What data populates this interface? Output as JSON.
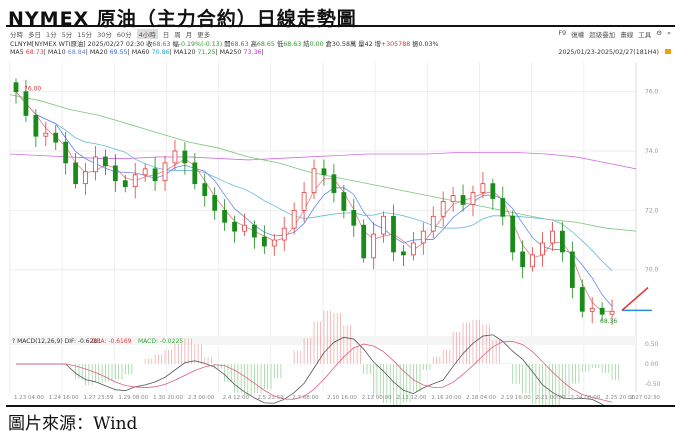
{
  "title": "NYMEX 原油（主力合約）日線走勢圖",
  "toolbar": {
    "periods": [
      "分時",
      "多日",
      "1分",
      "5分",
      "15分",
      "30分",
      "60分",
      "4小時",
      "日",
      "周",
      "月",
      "更多"
    ],
    "active": "4小時",
    "right": [
      "F9",
      "復權",
      "超級疊加",
      "畫線",
      "工具",
      "⚙",
      "»"
    ]
  },
  "info": {
    "symbol": "CLNYM[NYMEX WTI原油]",
    "datetime": "2025/02/27 02:30",
    "close_label": "收",
    "close": "68.63",
    "change_label": "幅",
    "change": "-0.19%(-0.13)",
    "open_label": "開",
    "open": "68.63",
    "high_label": "高",
    "high": "68.65",
    "low_label": "低",
    "low": "68.63",
    "settle_label": "結",
    "settle": "0.00",
    "oi_label": "倉",
    "oi": "30.58萬",
    "vol_label": "量",
    "vol": "42",
    "delta_label": "增",
    "delta": "+305788",
    "amp_label": "振",
    "amp": "0.03%"
  },
  "ma": [
    {
      "label": "MA5",
      "value": "68.73",
      "color": "#e04040"
    },
    {
      "label": "MA10",
      "value": "68.84",
      "color": "#6688cc"
    },
    {
      "label": "MA20",
      "value": "69.55",
      "color": "#3366ff"
    },
    {
      "label": "MA60",
      "value": "70.86",
      "color": "#22aacc"
    },
    {
      "label": "MA120",
      "value": "71.25",
      "color": "#33aa33"
    },
    {
      "label": "MA250",
      "value": "73.36",
      "color": "#cc33cc"
    }
  ],
  "range": "2025/01/23-2025/02/27(181H4)",
  "source": "圖片來源：Wind",
  "chart_data": {
    "type": "candlestick",
    "price_axis": [
      "76.0",
      "74.0",
      "72.0",
      "70.0"
    ],
    "ylim": [
      67.8,
      77.0
    ],
    "high_label": "76.00",
    "low_label": "68.36",
    "closes": [
      76.0,
      75.2,
      74.5,
      74.6,
      74.3,
      73.6,
      72.9,
      73.3,
      73.8,
      73.5,
      73.0,
      72.8,
      73.2,
      73.4,
      73.0,
      73.6,
      74.0,
      73.6,
      72.9,
      72.5,
      72.0,
      71.6,
      71.3,
      71.5,
      71.1,
      70.8,
      71.0,
      71.4,
      72.0,
      72.6,
      73.4,
      73.2,
      72.6,
      72.0,
      71.5,
      70.4,
      71.2,
      71.8,
      70.6,
      70.5,
      70.9,
      71.3,
      71.8,
      72.3,
      72.5,
      72.2,
      72.6,
      72.9,
      72.4,
      71.8,
      70.6,
      70.1,
      70.5,
      70.9,
      71.3,
      70.6,
      69.4,
      68.6,
      68.7,
      68.5,
      68.6
    ],
    "ma120": [
      75.9,
      75.7,
      75.4,
      75.2,
      74.9,
      74.6,
      74.3,
      74.1,
      73.8,
      73.6,
      73.3,
      73.1,
      72.9,
      72.7,
      72.5,
      72.3,
      72.1,
      71.9,
      71.7,
      71.6,
      71.4,
      71.3
    ],
    "ma250": [
      73.9,
      73.85,
      73.8,
      73.75,
      73.75,
      73.8,
      73.8,
      73.75,
      73.7,
      73.75,
      73.8,
      73.85,
      73.9,
      73.9,
      73.9,
      73.95,
      73.95,
      73.95,
      73.9,
      73.8,
      73.6,
      73.4
    ],
    "macd": {
      "label": "MACD(12,26,9)",
      "dif_label": "DIF:",
      "dif": "-0.6281",
      "dea_label": "DEA:",
      "dea": "-0.6169",
      "macd_label": "MACD:",
      "macd": "-0.0225",
      "axis": [
        "0.50",
        "0.00",
        "-0.50"
      ]
    },
    "x_ticks": [
      "1.23 04:00",
      "1.24 16:00",
      "1.27 23:59",
      "1.29 08:00",
      "1.30 20:00",
      "2.3 00:00",
      "2.4 12:00",
      "2.5 23:59",
      "2.7 08:00",
      "2.10 16:00",
      "2.12 00:00",
      "2.13 12:00",
      "2.16 20:00",
      "2.18 04:00",
      "2.19 16:00",
      "2.21 00:00",
      "2.24 08:00",
      "2.25 20:00",
      "2.27 02:30"
    ]
  }
}
